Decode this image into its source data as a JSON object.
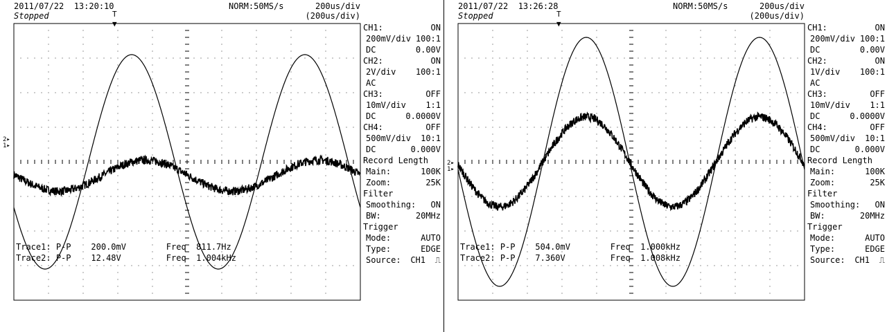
{
  "screens": [
    {
      "timestamp": "2011/07/22  13:20:10",
      "status": "Stopped",
      "acq": "NORM:50MS/s",
      "timebase": "200us/div",
      "timebase2": "(200us/div)",
      "panel": {
        "ch1": {
          "label": "CH1:",
          "state": "ON",
          "scale": "200mV/div",
          "probe": "100:1",
          "coupling": "DC",
          "offset": "0.00V"
        },
        "ch2": {
          "label": "CH2:",
          "state": "ON",
          "scale": "2V/div",
          "probe": "100:1",
          "coupling": "AC",
          "offset": ""
        },
        "ch3": {
          "label": "CH3:",
          "state": "OFF",
          "scale": "10mV/div",
          "probe": "1:1",
          "coupling": "DC",
          "offset": "0.0000V"
        },
        "ch4": {
          "label": "CH4:",
          "state": "OFF",
          "scale": "500mV/div",
          "probe": "10:1",
          "coupling": "DC",
          "offset": "0.000V"
        },
        "record_length": "Record Length",
        "main_label": "Main:",
        "main_value": "100K",
        "zoom_label": "Zoom:",
        "zoom_value": "25K",
        "filter": "Filter",
        "smoothing_label": "Smoothing:",
        "smoothing_value": "ON",
        "bw_label": "BW:",
        "bw_value": "20MHz",
        "trigger": "Trigger",
        "mode_label": "Mode:",
        "mode_value": "AUTO",
        "type_label": "Type:",
        "type_value": "EDGE",
        "source_label": "Source:",
        "source_value": "CH1"
      },
      "measurements": [
        {
          "trace": "Trace1:",
          "kind": "P-P",
          "value": "200.0mV",
          "freq_label": "Freq",
          "freq": "811.7Hz"
        },
        {
          "trace": "Trace2:",
          "kind": "P-P",
          "value": "12.48V",
          "freq_label": "Freq",
          "freq": "1.004kHz"
        }
      ],
      "waveforms": {
        "big": {
          "amplitude_div": 3.1,
          "center_div": 0,
          "period_div": 5,
          "phase_div": 3.4
        },
        "small": {
          "amplitude_div": 0.45,
          "center_div": -0.4,
          "period_div": 5,
          "phase_div": 3.8,
          "noise_div": 0.12
        }
      }
    },
    {
      "timestamp": "2011/07/22  13:26:28",
      "status": "Stopped",
      "acq": "NORM:50MS/s",
      "timebase": "200us/div",
      "timebase2": "(200us/div)",
      "panel": {
        "ch1": {
          "label": "CH1:",
          "state": "ON",
          "scale": "200mV/div",
          "probe": "100:1",
          "coupling": "DC",
          "offset": "0.00V"
        },
        "ch2": {
          "label": "CH2:",
          "state": "ON",
          "scale": "1V/div",
          "probe": "100:1",
          "coupling": "AC",
          "offset": ""
        },
        "ch3": {
          "label": "CH3:",
          "state": "OFF",
          "scale": "10mV/div",
          "probe": "1:1",
          "coupling": "DC",
          "offset": "0.0000V"
        },
        "ch4": {
          "label": "CH4:",
          "state": "OFF",
          "scale": "500mV/div",
          "probe": "10:1",
          "coupling": "DC",
          "offset": "0.000V"
        },
        "record_length": "Record Length",
        "main_label": "Main:",
        "main_value": "100K",
        "zoom_label": "Zoom:",
        "zoom_value": "25K",
        "filter": "Filter",
        "smoothing_label": "Smoothing:",
        "smoothing_value": "ON",
        "bw_label": "BW:",
        "bw_value": "20MHz",
        "trigger": "Trigger",
        "mode_label": "Mode:",
        "mode_value": "AUTO",
        "type_label": "Type:",
        "type_value": "EDGE",
        "source_label": "Source:",
        "source_value": "CH1"
      },
      "measurements": [
        {
          "trace": "Trace1:",
          "kind": "P-P",
          "value": "504.0mV",
          "freq_label": "Freq",
          "freq": "1.000kHz"
        },
        {
          "trace": "Trace2:",
          "kind": "P-P",
          "value": "7.360V",
          "freq_label": "Freq",
          "freq": "1.008kHz"
        }
      ],
      "waveforms": {
        "big": {
          "amplitude_div": 3.6,
          "center_div": 0,
          "period_div": 5,
          "phase_div": 3.7
        },
        "small": {
          "amplitude_div": 1.3,
          "center_div": 0,
          "period_div": 5,
          "phase_div": 3.7,
          "noise_div": 0.12
        }
      }
    }
  ],
  "icons": {
    "trigger_marker": "trigger-position-icon",
    "ground_marker": "channel-ground-icon",
    "edge": "rising-edge-icon"
  }
}
